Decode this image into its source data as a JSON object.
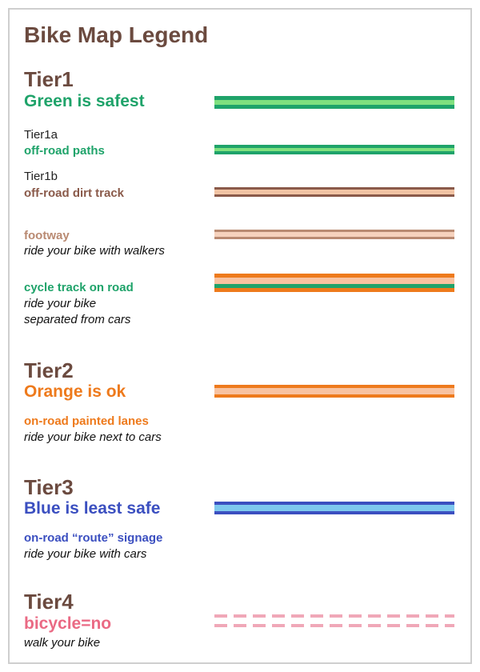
{
  "title": "Bike Map Legend",
  "tier1": {
    "label": "Tier1",
    "heading": "Green is safest",
    "tier1a": {
      "label": "Tier1a",
      "name": "off-road paths"
    },
    "tier1b": {
      "label": "Tier1b",
      "name": "off-road dirt track"
    },
    "footway": {
      "name": "footway",
      "desc": "ride your bike with walkers"
    },
    "cycle_track": {
      "name": "cycle track on road",
      "desc_line1": "ride your bike",
      "desc_line2": "separated from cars"
    }
  },
  "tier2": {
    "label": "Tier2",
    "heading": "Orange is ok",
    "lanes": {
      "name": "on-road painted lanes",
      "desc": "ride your bike next to cars"
    }
  },
  "tier3": {
    "label": "Tier3",
    "heading": "Blue is least safe",
    "signage": {
      "name": "on-road “route” signage",
      "desc": "ride your bike with cars"
    }
  },
  "tier4": {
    "label": "Tier4",
    "heading": "bicycle=no",
    "desc": "walk your bike"
  },
  "colors": {
    "green_dark": "#1fa36a",
    "green_light": "#7fe07f",
    "brown": "#8a5a4a",
    "tan": "#f2c4a4",
    "orange": "#ee7a1c",
    "orange_light": "#f8c2a0",
    "blue": "#3b4fc0",
    "blue_light": "#7ec8ee",
    "pink": "#f0a8b8"
  }
}
